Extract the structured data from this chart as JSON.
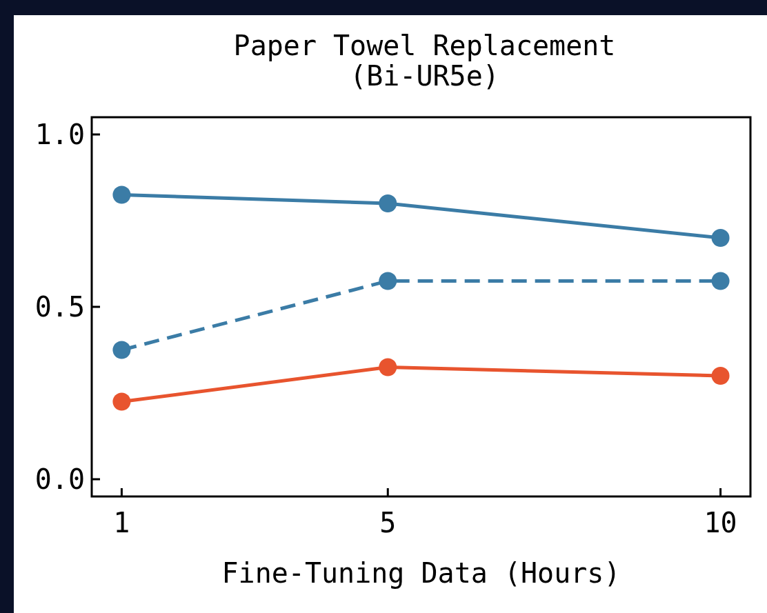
{
  "chart_data": {
    "type": "line",
    "title": "Paper Towel Replacement\n(Bi-UR5e)",
    "xlabel": "Fine-Tuning Data (Hours)",
    "x": [
      1,
      5,
      10
    ],
    "xlim": [
      0.55,
      10.45
    ],
    "xticks": [
      1,
      5,
      10
    ],
    "ylim": [
      -0.05,
      1.05
    ],
    "yticks": [
      {
        "value": 0,
        "label": "0.0"
      },
      {
        "value": 0.5,
        "label": "0.5"
      },
      {
        "value": 1,
        "label": "1.0"
      }
    ],
    "series": [
      {
        "color": "#3b7ca6",
        "values": [
          0.825,
          0.8,
          0.7
        ],
        "line_style": "solid"
      },
      {
        "color": "#3b7ca6",
        "values": [
          0.375,
          0.575,
          0.575
        ],
        "line_style": "dashed"
      },
      {
        "color": "#e8542e",
        "values": [
          0.225,
          0.325,
          0.3
        ],
        "line_style": "solid"
      }
    ],
    "marker": "circle",
    "grid": false
  }
}
